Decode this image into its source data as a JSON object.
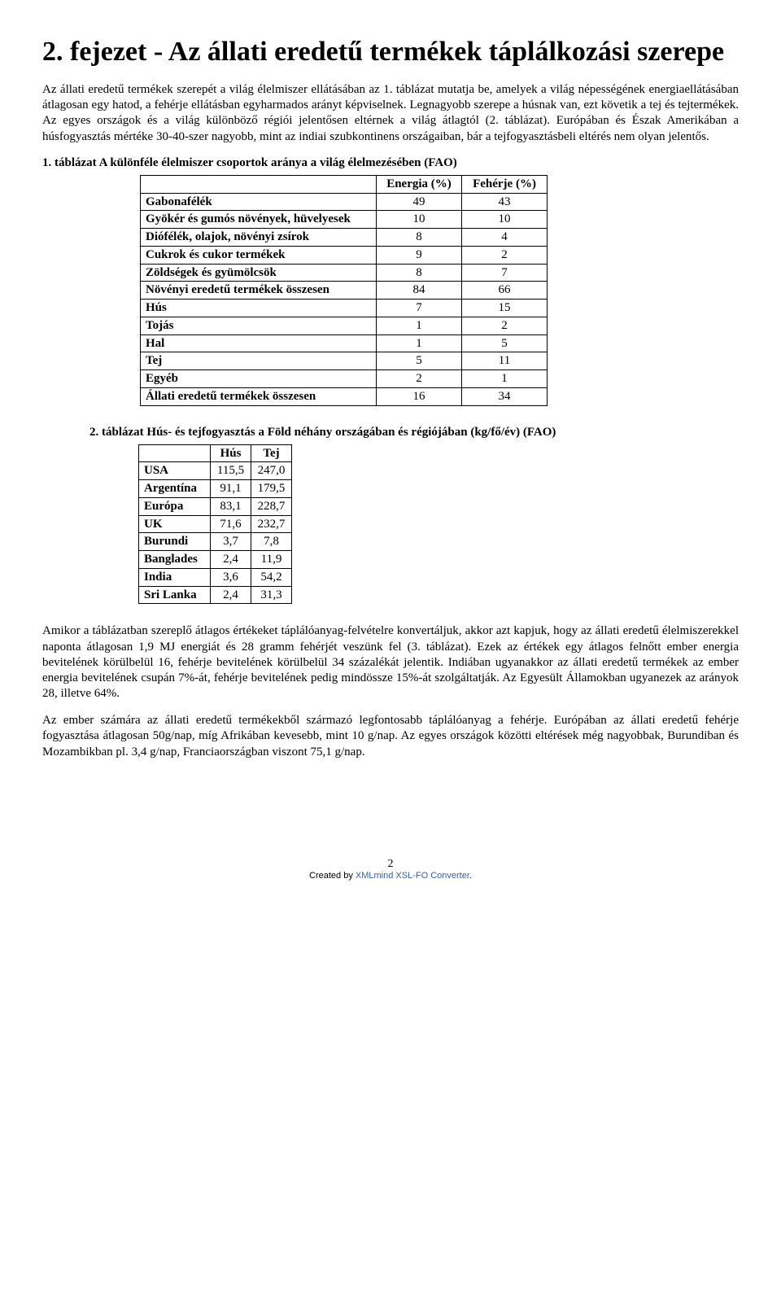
{
  "title": "2. fejezet - Az állati eredetű termékek táplálkozási szerepe",
  "paragraphs": {
    "p1": "Az állati eredetű termékek szerepét a világ élelmiszer ellátásában az 1. táblázat mutatja be, amelyek a világ népességének energiaellátásában átlagosan egy hatod, a fehérje ellátásban egyharmados arányt képviselnek. Legnagyobb szerepe a húsnak van, ezt követik a tej és tejtermékek. Az egyes országok és a világ különböző régiói jelentősen eltérnek a világ átlagtól (2. táblázat). Európában és Észak Amerikában a húsfogyasztás mértéke 30-40-szer nagyobb, mint az indiai szubkontinens országaiban, bár a tejfogyasztásbeli eltérés nem olyan jelentős.",
    "p2": "Amikor a táblázatban szereplő átlagos értékeket táplálóanyag-felvételre konvertáljuk, akkor azt kapjuk, hogy az állati eredetű élelmiszerekkel naponta átlagosan 1,9 MJ energiát és 28 gramm fehérjét veszünk fel (3. táblázat). Ezek az értékek egy átlagos felnőtt ember energia bevitelének körülbelül 16, fehérje bevitelének körülbelül 34 százalékát jelentik. Indiában ugyanakkor az állati eredetű termékek az ember energia bevitelének csupán 7%-át, fehérje bevitelének pedig mindössze 15%-át szolgáltatják. Az Egyesült Államokban ugyanezek az arányok 28, illetve 64%.",
    "p3": "Az ember számára az állati eredetű termékekből származó legfontosabb táplálóanyag a fehérje. Európában az állati eredetű fehérje fogyasztása átlagosan 50g/nap, míg Afrikában kevesebb, mint 10 g/nap. Az egyes országok közötti eltérések még nagyobbak, Burundiban és Mozambikban pl. 3,4 g/nap, Franciaországban viszont 75,1 g/nap."
  },
  "table1": {
    "title": "1. táblázat A különféle élelmiszer csoportok aránya a világ élelmezésében (FAO)",
    "headers": [
      "",
      "Energia (%)",
      "Fehérje (%)"
    ],
    "rows": [
      {
        "label": "Gabonafélék",
        "bold": true,
        "c1": "49",
        "c2": "43"
      },
      {
        "label": "Gyökér és gumós növények, hüvelyesek",
        "bold": true,
        "c1": "10",
        "c2": "10"
      },
      {
        "label": "Diófélék, olajok, növényi zsírok",
        "bold": true,
        "c1": "8",
        "c2": "4"
      },
      {
        "label": "Cukrok és cukor termékek",
        "bold": true,
        "c1": "9",
        "c2": "2"
      },
      {
        "label": "Zöldségek és gyümölcsök",
        "bold": true,
        "c1": "8",
        "c2": "7"
      },
      {
        "label": "Növényi eredetű termékek összesen",
        "bold": true,
        "c1": "84",
        "c2": "66"
      },
      {
        "label": "Hús",
        "bold": true,
        "c1": "7",
        "c2": "15"
      },
      {
        "label": "Tojás",
        "bold": true,
        "c1": "1",
        "c2": "2"
      },
      {
        "label": "Hal",
        "bold": true,
        "c1": "1",
        "c2": "5"
      },
      {
        "label": "Tej",
        "bold": true,
        "c1": "5",
        "c2": "11"
      },
      {
        "label": "Egyéb",
        "bold": true,
        "c1": "2",
        "c2": "1"
      },
      {
        "label": "Állati eredetű termékek összesen",
        "bold": true,
        "c1": "16",
        "c2": "34"
      }
    ]
  },
  "table2": {
    "title": "2. táblázat Hús- és tejfogyasztás a Föld néhány országában és régiójában (kg/fő/év) (FAO)",
    "headers": [
      "",
      "Hús",
      "Tej"
    ],
    "rows": [
      {
        "label": "USA",
        "bold": true,
        "c1": "115,5",
        "c2": "247,0"
      },
      {
        "label": "Argentína",
        "bold": true,
        "c1": "91,1",
        "c2": "179,5"
      },
      {
        "label": "Európa",
        "bold": true,
        "c1": "83,1",
        "c2": "228,7"
      },
      {
        "label": "UK",
        "bold": true,
        "c1": "71,6",
        "c2": "232,7"
      },
      {
        "label": "Burundi",
        "bold": true,
        "c1": "3,7",
        "c2": "7,8"
      },
      {
        "label": "Banglades",
        "bold": true,
        "c1": "2,4",
        "c2": "11,9"
      },
      {
        "label": "India",
        "bold": true,
        "c1": "3,6",
        "c2": "54,2"
      },
      {
        "label": "Sri Lanka",
        "bold": true,
        "c1": "2,4",
        "c2": "31,3"
      }
    ]
  },
  "footer": {
    "page_number": "2",
    "created_by_prefix": "Created by ",
    "created_by_link": "XMLmind XSL-FO Converter",
    "period": "."
  }
}
